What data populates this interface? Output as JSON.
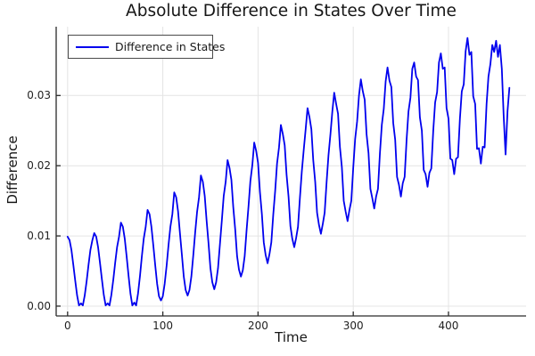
{
  "chart_data": {
    "type": "line",
    "title": "Absolute Difference in States Over Time",
    "xlabel": "Time",
    "ylabel": "Difference",
    "legend": {
      "position": "top-left",
      "entries": [
        {
          "label": "Difference in States",
          "color": "#0000ee"
        }
      ]
    },
    "axes": {
      "xlim": [
        -12,
        481.5
      ],
      "ylim": [
        -0.0014,
        0.0398
      ],
      "grid": true,
      "x_ticks": [
        {
          "value": 0,
          "label": "0"
        },
        {
          "value": 100,
          "label": "100"
        },
        {
          "value": 200,
          "label": "200"
        },
        {
          "value": 300,
          "label": "300"
        },
        {
          "value": 400,
          "label": "400"
        }
      ],
      "y_ticks": [
        {
          "value": 0.0,
          "label": "0.00"
        },
        {
          "value": 0.01,
          "label": "0.01"
        },
        {
          "value": 0.02,
          "label": "0.02"
        },
        {
          "value": 0.03,
          "label": "0.03"
        }
      ]
    },
    "style": {
      "line_color": "#0000ee",
      "grid_color": "#e4e4e4",
      "spine_color": "#2a2a2a",
      "text_color": "#1a1a1a",
      "background": "#ffffff"
    },
    "series": [
      {
        "name": "Difference in States",
        "color": "#0000ee",
        "t_start": 0,
        "t_step": 2,
        "value_scale": 0.0001,
        "values": [
          99,
          94,
          80,
          59,
          36,
          15,
          1,
          4,
          1,
          15,
          36,
          59,
          80,
          94,
          104,
          99,
          84,
          62,
          38,
          16,
          1,
          4,
          1,
          16,
          38,
          62,
          84,
          99,
          119,
          113,
          96,
          71,
          43,
          18,
          1,
          5,
          1,
          18,
          43,
          71,
          96,
          113,
          137,
          131,
          113,
          87,
          58,
          32,
          14,
          8,
          14,
          32,
          58,
          87,
          113,
          131,
          162,
          155,
          135,
          104,
          73,
          42,
          23,
          15,
          23,
          42,
          73,
          105,
          134,
          155,
          186,
          177,
          157,
          122,
          89,
          54,
          34,
          24,
          34,
          54,
          89,
          122,
          157,
          177,
          208,
          197,
          180,
          141,
          109,
          71,
          52,
          42,
          51,
          71,
          109,
          142,
          178,
          201,
          233,
          221,
          204,
          163,
          131,
          91,
          73,
          61,
          74,
          91,
          131,
          164,
          203,
          226,
          258,
          245,
          229,
          187,
          156,
          114,
          96,
          84,
          97,
          113,
          155,
          192,
          222,
          252,
          282,
          269,
          252,
          208,
          177,
          133,
          116,
          103,
          117,
          133,
          177,
          215,
          245,
          277,
          304,
          288,
          274,
          227,
          198,
          150,
          135,
          121,
          137,
          150,
          198,
          238,
          263,
          300,
          323,
          306,
          294,
          245,
          218,
          167,
          154,
          139,
          156,
          167,
          218,
          258,
          281,
          320,
          340,
          321,
          312,
          261,
          237,
          184,
          173,
          156,
          175,
          184,
          237,
          277,
          297,
          338,
          347,
          327,
          322,
          269,
          250,
          194,
          188,
          170,
          190,
          196,
          250,
          290,
          305,
          347,
          360,
          338,
          340,
          282,
          267,
          210,
          208,
          188,
          210,
          212,
          267,
          306,
          316,
          363,
          382,
          358,
          362,
          299,
          288,
          224,
          225,
          203,
          227,
          226,
          288,
          327,
          345,
          372,
          362,
          378,
          355,
          372,
          338,
          270,
          216,
          278,
          311
        ]
      }
    ]
  }
}
